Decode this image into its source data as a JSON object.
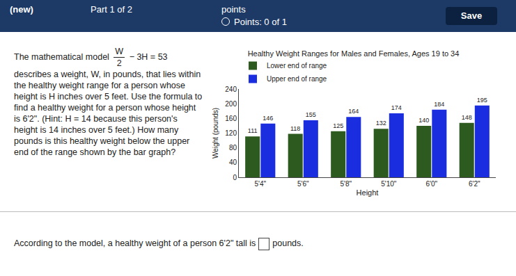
{
  "header": {
    "new": "(new)",
    "part": "Part 1 of 2",
    "points": "points",
    "score": "Points: 0 of 1",
    "save": "Save"
  },
  "problem": {
    "intro": "The mathematical model",
    "formula": {
      "numerator": "W",
      "denominator": "2",
      "rest": "− 3H = 53"
    },
    "body": "describes a weight, W, in pounds, that lies within the healthy weight range for a person whose height is H inches over 5 feet. Use the formula to find a healthy weight for a person whose height is 6'2\". (Hint: H = 14 because this person's height is 14 inches over 5 feet.) How many pounds is this healthy weight below the upper end of the range shown by the bar graph?"
  },
  "answer_prompt": {
    "before": "According to the model, a healthy weight of a person 6'2\" tall is",
    "after": "pounds."
  },
  "chart_data": {
    "type": "bar",
    "title": "Healthy Weight Ranges for Males and Females, Ages 19 to 34",
    "x_label": "Height",
    "y_label": "Weight (pounds)",
    "categories": [
      "5'4\"",
      "5'6\"",
      "5'8\"",
      "5'10\"",
      "6'0\"",
      "6'2\""
    ],
    "series": [
      {
        "name": "Lower end of range",
        "color": "#2d5a1f",
        "values": [
          111,
          118,
          125,
          132,
          140,
          148
        ]
      },
      {
        "name": "Upper end of range",
        "color": "#1a2ee0",
        "values": [
          146,
          155,
          164,
          174,
          184,
          195
        ]
      }
    ],
    "ylim": [
      0,
      240
    ],
    "yticks": [
      0,
      40,
      80,
      120,
      160,
      200,
      240
    ],
    "grid": false,
    "legend": "top-left",
    "data_labels": true
  }
}
